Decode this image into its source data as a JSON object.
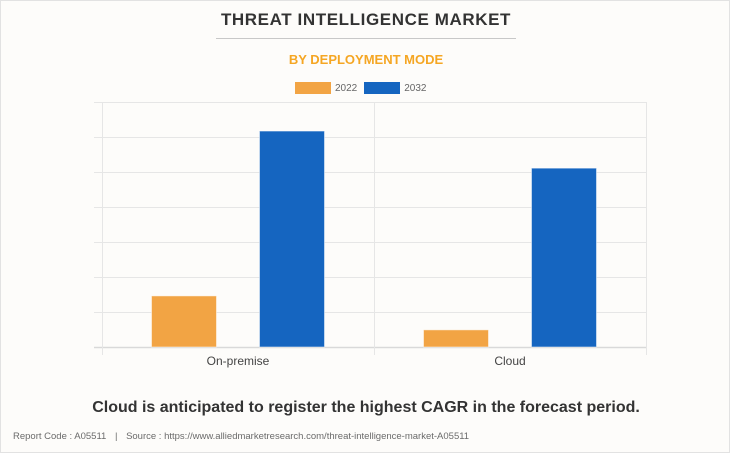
{
  "header": {
    "title": "THREAT INTELLIGENCE MARKET",
    "subtitle": "BY DEPLOYMENT MODE"
  },
  "colors": {
    "series_2022": "#F2A444",
    "series_2032": "#1565C0",
    "subtitle": "#F5A623",
    "grid": "#E6E6E6"
  },
  "chart_data": {
    "type": "bar",
    "title": "THREAT INTELLIGENCE MARKET",
    "subtitle": "BY DEPLOYMENT MODE",
    "xlabel": "",
    "ylabel": "",
    "categories": [
      "On-premise",
      "Cloud"
    ],
    "series": [
      {
        "name": "2022",
        "values": [
          1.46,
          0.49
        ]
      },
      {
        "name": "2032",
        "values": [
          6.17,
          5.11
        ]
      }
    ],
    "ylim": [
      0,
      7
    ],
    "y_ticks_labeled": false,
    "grid": true,
    "legend": "top-center",
    "units_note": "relative units (gridline intervals); no axis values shown"
  },
  "caption": "Cloud is anticipated to register the highest CAGR in the forecast period.",
  "footer": {
    "report_code": "Report Code : A05511",
    "separator": "|",
    "source": "Source : https://www.alliedmarketresearch.com/threat-intelligence-market-A05511"
  }
}
